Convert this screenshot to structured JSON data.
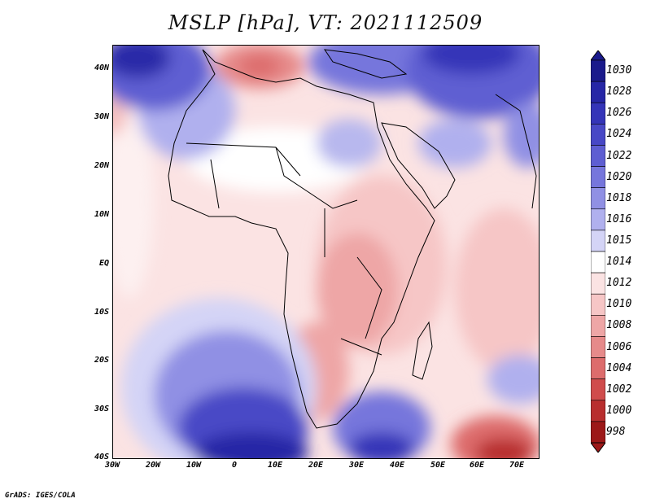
{
  "title": "MSLP [hPa], VT: 2021112509",
  "lat_ticks": [
    "40N",
    "30N",
    "20N",
    "10N",
    "EQ",
    "10S",
    "20S",
    "30S",
    "40S"
  ],
  "lon_ticks": [
    "30W",
    "20W",
    "10W",
    "0",
    "10E",
    "20E",
    "30E",
    "40E",
    "50E",
    "60E",
    "70E"
  ],
  "colorbar": {
    "levels": [
      "1030",
      "1028",
      "1026",
      "1024",
      "1022",
      "1020",
      "1018",
      "1016",
      "1015",
      "1014",
      "1012",
      "1010",
      "1008",
      "1006",
      "1004",
      "1002",
      "1000",
      "998"
    ],
    "colors": [
      "#1a1a8c",
      "#2626a6",
      "#3434b8",
      "#4848c6",
      "#5e5ed2",
      "#7676dc",
      "#9090e4",
      "#b0b0ee",
      "#d4d4f6",
      "#ffffff",
      "#fbe3e3",
      "#f6c6c6",
      "#eea6a6",
      "#e68a8a",
      "#dd6c6c",
      "#d04c4c",
      "#b82e2e",
      "#9c1818"
    ]
  },
  "credit": "GrADS: IGES/COLA"
}
